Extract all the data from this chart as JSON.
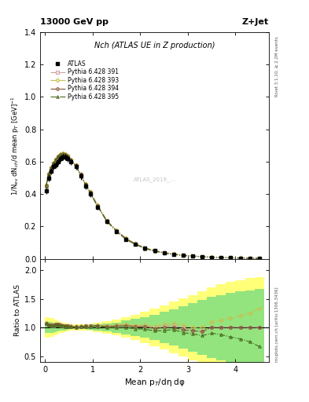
{
  "title_left": "13000 GeV pp",
  "title_right": "Z+Jet",
  "plot_title": "Nch (ATLAS UE in Z production)",
  "ylabel_main": "1/N$_{ev}$ dN$_{ch}$/d mean p$_{T}$ [GeV]$^{-1}$",
  "ylabel_ratio": "Ratio to ATLAS",
  "xlabel": "Mean p$_{T}$/dη dφ",
  "right_label_top": "Rivet 3.1.10, ≥ 2.2M events",
  "right_label_bottom": "mcplots.cern.ch [arXiv:1306.3436]",
  "watermark": "ATLAS_2019_...",
  "atlas_x": [
    0.025,
    0.075,
    0.125,
    0.175,
    0.225,
    0.275,
    0.325,
    0.375,
    0.425,
    0.475,
    0.55,
    0.65,
    0.75,
    0.85,
    0.95,
    1.1,
    1.3,
    1.5,
    1.7,
    1.9,
    2.1,
    2.3,
    2.5,
    2.7,
    2.9,
    3.1,
    3.3,
    3.5,
    3.7,
    3.9,
    4.1,
    4.3,
    4.5
  ],
  "atlas_y": [
    0.42,
    0.5,
    0.54,
    0.57,
    0.58,
    0.6,
    0.62,
    0.63,
    0.63,
    0.62,
    0.6,
    0.57,
    0.51,
    0.45,
    0.4,
    0.32,
    0.23,
    0.17,
    0.12,
    0.09,
    0.065,
    0.05,
    0.037,
    0.028,
    0.022,
    0.018,
    0.014,
    0.01,
    0.008,
    0.006,
    0.005,
    0.004,
    0.003
  ],
  "atlas_yerr": [
    0.02,
    0.02,
    0.02,
    0.02,
    0.02,
    0.02,
    0.02,
    0.02,
    0.02,
    0.02,
    0.02,
    0.02,
    0.02,
    0.02,
    0.02,
    0.015,
    0.012,
    0.01,
    0.008,
    0.006,
    0.005,
    0.004,
    0.003,
    0.003,
    0.002,
    0.002,
    0.002,
    0.002,
    0.002,
    0.002,
    0.002,
    0.002,
    0.002
  ],
  "pythia_x": [
    0.025,
    0.075,
    0.125,
    0.175,
    0.225,
    0.275,
    0.325,
    0.375,
    0.425,
    0.475,
    0.55,
    0.65,
    0.75,
    0.85,
    0.95,
    1.1,
    1.3,
    1.5,
    1.7,
    1.9,
    2.1,
    2.3,
    2.5,
    2.7,
    2.9,
    3.1,
    3.3,
    3.5,
    3.7,
    3.9,
    4.1,
    4.3,
    4.5
  ],
  "p391_y": [
    0.45,
    0.52,
    0.56,
    0.59,
    0.61,
    0.63,
    0.645,
    0.648,
    0.645,
    0.635,
    0.61,
    0.575,
    0.52,
    0.46,
    0.41,
    0.33,
    0.235,
    0.175,
    0.125,
    0.092,
    0.067,
    0.05,
    0.038,
    0.029,
    0.022,
    0.017,
    0.013,
    0.01,
    0.008,
    0.006,
    0.005,
    0.004,
    0.003
  ],
  "p393_y": [
    0.455,
    0.525,
    0.565,
    0.595,
    0.615,
    0.635,
    0.648,
    0.651,
    0.648,
    0.638,
    0.613,
    0.578,
    0.523,
    0.463,
    0.413,
    0.333,
    0.237,
    0.177,
    0.127,
    0.093,
    0.068,
    0.051,
    0.039,
    0.03,
    0.023,
    0.018,
    0.014,
    0.011,
    0.009,
    0.007,
    0.006,
    0.005,
    0.004
  ],
  "p394_y": [
    0.452,
    0.522,
    0.562,
    0.592,
    0.612,
    0.632,
    0.645,
    0.648,
    0.645,
    0.635,
    0.61,
    0.575,
    0.52,
    0.46,
    0.41,
    0.33,
    0.234,
    0.174,
    0.124,
    0.091,
    0.066,
    0.049,
    0.037,
    0.028,
    0.021,
    0.017,
    0.013,
    0.01,
    0.008,
    0.006,
    0.005,
    0.004,
    0.003
  ],
  "p395_y": [
    0.448,
    0.518,
    0.558,
    0.588,
    0.608,
    0.628,
    0.641,
    0.644,
    0.641,
    0.631,
    0.606,
    0.571,
    0.516,
    0.456,
    0.406,
    0.326,
    0.23,
    0.17,
    0.12,
    0.088,
    0.063,
    0.047,
    0.035,
    0.027,
    0.02,
    0.016,
    0.012,
    0.009,
    0.007,
    0.005,
    0.004,
    0.003,
    0.002
  ],
  "color_391": "#d4a0a0",
  "color_393": "#c8c050",
  "color_394": "#7a5030",
  "color_395": "#4a6820",
  "ylim_main": [
    0,
    1.4
  ],
  "ylim_ratio": [
    0.4,
    2.2
  ],
  "xlim": [
    -0.1,
    4.7
  ],
  "yticks_main": [
    0.0,
    0.2,
    0.4,
    0.6,
    0.8,
    1.0,
    1.2,
    1.4
  ],
  "yticks_ratio": [
    0.5,
    1.0,
    1.5,
    2.0
  ],
  "band_yellow_low": [
    0.82,
    0.82,
    0.83,
    0.84,
    0.86,
    0.88,
    0.9,
    0.91,
    0.92,
    0.93,
    0.94,
    0.95,
    0.95,
    0.95,
    0.94,
    0.92,
    0.89,
    0.86,
    0.82,
    0.78,
    0.73,
    0.67,
    0.61,
    0.55,
    0.49,
    0.43,
    0.37,
    0.3,
    0.25,
    0.2,
    0.17,
    0.14,
    0.12
  ],
  "band_yellow_high": [
    1.18,
    1.18,
    1.17,
    1.16,
    1.14,
    1.12,
    1.1,
    1.09,
    1.08,
    1.07,
    1.06,
    1.05,
    1.05,
    1.05,
    1.06,
    1.08,
    1.11,
    1.14,
    1.18,
    1.22,
    1.27,
    1.33,
    1.39,
    1.45,
    1.51,
    1.57,
    1.63,
    1.7,
    1.75,
    1.8,
    1.83,
    1.86,
    1.88
  ],
  "band_green_low": [
    0.9,
    0.9,
    0.9,
    0.91,
    0.92,
    0.93,
    0.94,
    0.95,
    0.95,
    0.96,
    0.97,
    0.97,
    0.97,
    0.97,
    0.96,
    0.95,
    0.93,
    0.91,
    0.88,
    0.85,
    0.82,
    0.78,
    0.73,
    0.68,
    0.63,
    0.57,
    0.52,
    0.47,
    0.43,
    0.39,
    0.37,
    0.35,
    0.33
  ],
  "band_green_high": [
    1.1,
    1.1,
    1.1,
    1.09,
    1.08,
    1.07,
    1.06,
    1.05,
    1.05,
    1.04,
    1.03,
    1.03,
    1.03,
    1.03,
    1.04,
    1.05,
    1.07,
    1.09,
    1.12,
    1.15,
    1.18,
    1.22,
    1.27,
    1.32,
    1.37,
    1.43,
    1.48,
    1.53,
    1.57,
    1.61,
    1.63,
    1.65,
    1.67
  ]
}
